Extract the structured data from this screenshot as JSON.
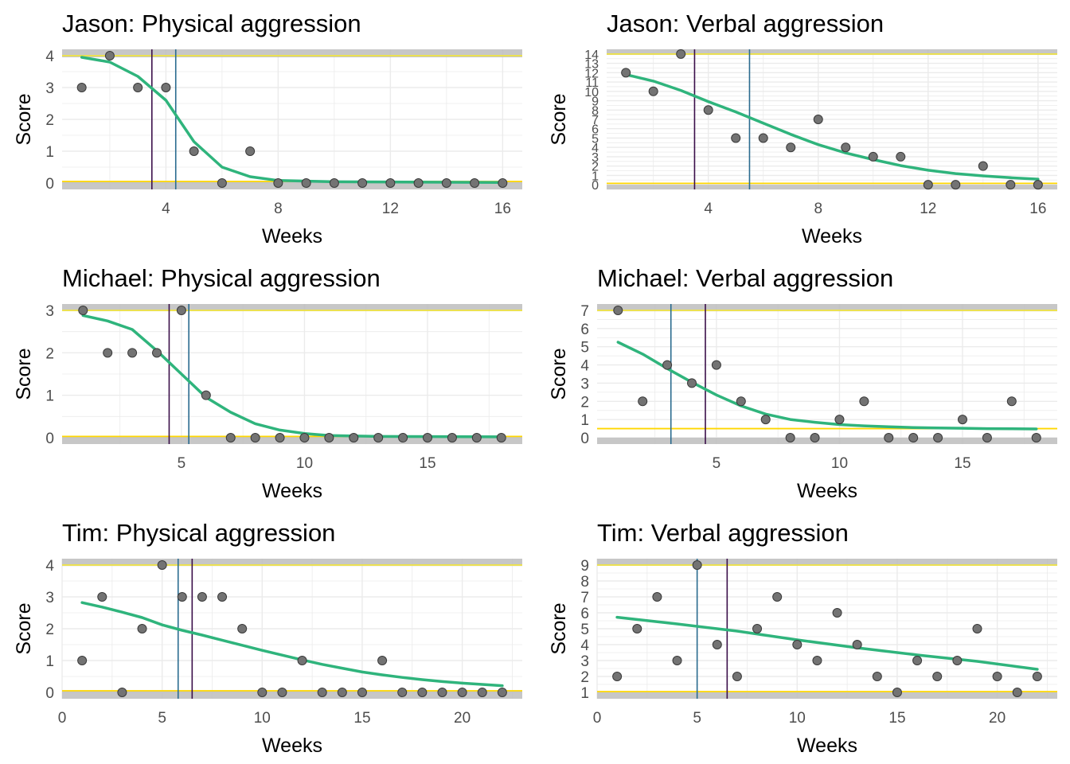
{
  "colors": {
    "curve": "#2fb47c",
    "point_fill": "#737373",
    "point_stroke": "#3a3a3a",
    "band": "#bdbdbd",
    "bound_line": "#f0e442",
    "zero_line": "#ffd700",
    "vline_dark": "#3b0f4a",
    "vline_blue": "#2a6b8f",
    "grid": "#ebebeb"
  },
  "chart_data": [
    {
      "type": "scatter",
      "title": "Jason: Physical aggression",
      "xlabel": "Weeks",
      "ylabel": "Score",
      "xlim": [
        0.3,
        16.7
      ],
      "ylim": [
        -0.2,
        4.2
      ],
      "xticks": [
        4,
        8,
        12,
        16
      ],
      "yticks": [
        0,
        1,
        2,
        3,
        4
      ],
      "points": [
        [
          1,
          3
        ],
        [
          2,
          4
        ],
        [
          3,
          3
        ],
        [
          4,
          3
        ],
        [
          5,
          1
        ],
        [
          6,
          0
        ],
        [
          7,
          1
        ],
        [
          8,
          0
        ],
        [
          9,
          0
        ],
        [
          10,
          0
        ],
        [
          11,
          0
        ],
        [
          12,
          0
        ],
        [
          13,
          0
        ],
        [
          14,
          0
        ],
        [
          15,
          0
        ],
        [
          16,
          0
        ]
      ],
      "fit": [
        [
          1,
          3.95
        ],
        [
          2,
          3.8
        ],
        [
          3,
          3.35
        ],
        [
          4,
          2.6
        ],
        [
          5,
          1.3
        ],
        [
          6,
          0.5
        ],
        [
          7,
          0.2
        ],
        [
          8,
          0.08
        ],
        [
          10,
          0.04
        ],
        [
          16,
          0.02
        ]
      ],
      "vlines": [
        {
          "x": 3.5,
          "color": "dark"
        },
        {
          "x": 4.35,
          "color": "blue"
        }
      ],
      "bands": [
        [
          3.95,
          4.2
        ],
        [
          -0.2,
          0.05
        ]
      ],
      "hlines": [
        {
          "y": 4.0,
          "color": "bound"
        },
        {
          "y": 0.05,
          "color": "zero"
        }
      ]
    },
    {
      "type": "scatter",
      "title": "Jason: Verbal aggression",
      "xlabel": "Weeks",
      "ylabel": "Score",
      "xlim": [
        0.3,
        16.7
      ],
      "ylim": [
        -0.5,
        14.5
      ],
      "xticks": [
        4,
        8,
        12,
        16
      ],
      "yticks": [
        0,
        1,
        2,
        3,
        4,
        5,
        6,
        7,
        8,
        9,
        10,
        11,
        12,
        13,
        14
      ],
      "points": [
        [
          1,
          12
        ],
        [
          2,
          10
        ],
        [
          3,
          14
        ],
        [
          4,
          8
        ],
        [
          5,
          5
        ],
        [
          6,
          5
        ],
        [
          7,
          4
        ],
        [
          8,
          7
        ],
        [
          9,
          4
        ],
        [
          10,
          3
        ],
        [
          11,
          3
        ],
        [
          12,
          0
        ],
        [
          13,
          0
        ],
        [
          14,
          2
        ],
        [
          15,
          0
        ],
        [
          16,
          0
        ]
      ],
      "fit": [
        [
          1,
          11.8
        ],
        [
          2,
          11.1
        ],
        [
          3,
          10.1
        ],
        [
          4,
          8.9
        ],
        [
          5,
          7.8
        ],
        [
          6,
          6.6
        ],
        [
          7,
          5.4
        ],
        [
          8,
          4.3
        ],
        [
          9,
          3.4
        ],
        [
          10,
          2.7
        ],
        [
          11,
          2.05
        ],
        [
          12,
          1.55
        ],
        [
          13,
          1.2
        ],
        [
          14,
          0.95
        ],
        [
          15,
          0.75
        ],
        [
          16,
          0.6
        ]
      ],
      "vlines": [
        {
          "x": 3.5,
          "color": "dark"
        },
        {
          "x": 5.5,
          "color": "blue"
        }
      ],
      "bands": [
        [
          13.9,
          14.5
        ],
        [
          -0.5,
          0.0
        ]
      ],
      "hlines": [
        {
          "y": 14.0,
          "color": "bound"
        },
        {
          "y": 0.15,
          "color": "zero"
        }
      ]
    },
    {
      "type": "scatter",
      "title": "Michael: Physical aggression",
      "xlabel": "Weeks",
      "ylabel": "Score",
      "xlim": [
        0.15,
        18.85
      ],
      "ylim": [
        -0.15,
        3.15
      ],
      "xticks": [
        5,
        10,
        15
      ],
      "yticks": [
        0,
        1,
        2,
        3
      ],
      "points": [
        [
          1,
          3
        ],
        [
          2,
          2
        ],
        [
          3,
          2
        ],
        [
          4,
          2
        ],
        [
          5,
          3
        ],
        [
          6,
          1
        ],
        [
          7,
          0
        ],
        [
          8,
          0
        ],
        [
          9,
          0
        ],
        [
          10,
          0
        ],
        [
          11,
          0
        ],
        [
          12,
          0
        ],
        [
          13,
          0
        ],
        [
          14,
          0
        ],
        [
          15,
          0
        ],
        [
          16,
          0
        ],
        [
          17,
          0
        ],
        [
          18,
          0
        ]
      ],
      "fit": [
        [
          1,
          2.88
        ],
        [
          2,
          2.75
        ],
        [
          3,
          2.55
        ],
        [
          4,
          2.05
        ],
        [
          5,
          1.5
        ],
        [
          6,
          0.95
        ],
        [
          7,
          0.6
        ],
        [
          8,
          0.33
        ],
        [
          9,
          0.18
        ],
        [
          10,
          0.1
        ],
        [
          11,
          0.05
        ],
        [
          13,
          0.03
        ],
        [
          18,
          0.02
        ]
      ],
      "vlines": [
        {
          "x": 4.5,
          "color": "dark"
        },
        {
          "x": 5.3,
          "color": "blue"
        }
      ],
      "bands": [
        [
          2.98,
          3.15
        ],
        [
          -0.15,
          0.03
        ]
      ],
      "hlines": [
        {
          "y": 3.0,
          "color": "bound"
        },
        {
          "y": 0.03,
          "color": "zero"
        }
      ]
    },
    {
      "type": "scatter",
      "title": "Michael: Verbal aggression",
      "xlabel": "Weeks",
      "ylabel": "Score",
      "xlim": [
        0.15,
        18.85
      ],
      "ylim": [
        -0.35,
        7.35
      ],
      "xticks": [
        5,
        10,
        15
      ],
      "yticks": [
        0,
        1,
        2,
        3,
        4,
        5,
        6,
        7
      ],
      "points": [
        [
          1,
          7
        ],
        [
          2,
          2
        ],
        [
          3,
          4
        ],
        [
          4,
          3
        ],
        [
          5,
          4
        ],
        [
          6,
          2
        ],
        [
          7,
          1
        ],
        [
          8,
          0
        ],
        [
          9,
          0
        ],
        [
          10,
          1
        ],
        [
          11,
          2
        ],
        [
          12,
          0
        ],
        [
          13,
          0
        ],
        [
          14,
          0
        ],
        [
          15,
          1
        ],
        [
          16,
          0
        ],
        [
          17,
          2
        ],
        [
          18,
          0
        ]
      ],
      "fit": [
        [
          1,
          5.25
        ],
        [
          2,
          4.6
        ],
        [
          3,
          3.8
        ],
        [
          4,
          3.05
        ],
        [
          5,
          2.35
        ],
        [
          6,
          1.75
        ],
        [
          7,
          1.3
        ],
        [
          8,
          1.0
        ],
        [
          9,
          0.85
        ],
        [
          10,
          0.72
        ],
        [
          11,
          0.65
        ],
        [
          12,
          0.6
        ],
        [
          13,
          0.56
        ],
        [
          14,
          0.54
        ],
        [
          15,
          0.52
        ],
        [
          16,
          0.5
        ],
        [
          17,
          0.49
        ],
        [
          18,
          0.48
        ]
      ],
      "vlines": [
        {
          "x": 3.15,
          "color": "blue"
        },
        {
          "x": 4.55,
          "color": "dark"
        }
      ],
      "bands": [
        [
          6.95,
          7.35
        ],
        [
          -0.35,
          0.0
        ]
      ],
      "hlines": [
        {
          "y": 7.0,
          "color": "bound"
        },
        {
          "y": 0.5,
          "color": "zero"
        }
      ]
    },
    {
      "type": "scatter",
      "title": "Tim: Physical aggression",
      "xlabel": "Weeks",
      "ylabel": "Score",
      "xlim": [
        0,
        23.0
      ],
      "ylim": [
        -0.2,
        4.2
      ],
      "xticks": [
        0,
        5,
        10,
        15,
        20
      ],
      "yticks": [
        0,
        1,
        2,
        3,
        4
      ],
      "points": [
        [
          1,
          1
        ],
        [
          2,
          3
        ],
        [
          3,
          0
        ],
        [
          4,
          2
        ],
        [
          5,
          4
        ],
        [
          6,
          3
        ],
        [
          7,
          3
        ],
        [
          8,
          3
        ],
        [
          9,
          2
        ],
        [
          10,
          0
        ],
        [
          11,
          0
        ],
        [
          12,
          1
        ],
        [
          13,
          0
        ],
        [
          14,
          0
        ],
        [
          15,
          0
        ],
        [
          16,
          1
        ],
        [
          17,
          0
        ],
        [
          18,
          0
        ],
        [
          19,
          0
        ],
        [
          20,
          0
        ],
        [
          21,
          0
        ],
        [
          22,
          0
        ]
      ],
      "fit": [
        [
          1,
          2.82
        ],
        [
          2,
          2.68
        ],
        [
          3,
          2.52
        ],
        [
          4,
          2.35
        ],
        [
          5,
          2.12
        ],
        [
          6,
          1.95
        ],
        [
          7,
          1.8
        ],
        [
          8,
          1.64
        ],
        [
          9,
          1.48
        ],
        [
          10,
          1.32
        ],
        [
          11,
          1.17
        ],
        [
          12,
          1.02
        ],
        [
          13,
          0.88
        ],
        [
          14,
          0.76
        ],
        [
          15,
          0.64
        ],
        [
          16,
          0.55
        ],
        [
          17,
          0.47
        ],
        [
          18,
          0.4
        ],
        [
          19,
          0.34
        ],
        [
          20,
          0.29
        ],
        [
          21,
          0.25
        ],
        [
          22,
          0.21
        ]
      ],
      "vlines": [
        {
          "x": 5.8,
          "color": "blue"
        },
        {
          "x": 6.5,
          "color": "dark"
        }
      ],
      "bands": [
        [
          3.97,
          4.2
        ],
        [
          -0.2,
          0.05
        ]
      ],
      "hlines": [
        {
          "y": 4.0,
          "color": "bound"
        },
        {
          "y": 0.05,
          "color": "zero"
        }
      ]
    },
    {
      "type": "scatter",
      "title": "Tim: Verbal aggression",
      "xlabel": "Weeks",
      "ylabel": "Score",
      "xlim": [
        0,
        23.0
      ],
      "ylim": [
        0.6,
        9.4
      ],
      "xticks": [
        0,
        5,
        10,
        15,
        20
      ],
      "yticks": [
        1,
        2,
        3,
        4,
        5,
        6,
        7,
        8,
        9
      ],
      "points": [
        [
          1,
          2
        ],
        [
          2,
          5
        ],
        [
          3,
          7
        ],
        [
          4,
          3
        ],
        [
          5,
          9
        ],
        [
          6,
          4
        ],
        [
          7,
          2
        ],
        [
          8,
          5
        ],
        [
          9,
          7
        ],
        [
          10,
          4
        ],
        [
          11,
          3
        ],
        [
          12,
          6
        ],
        [
          13,
          4
        ],
        [
          14,
          2
        ],
        [
          15,
          1
        ],
        [
          16,
          3
        ],
        [
          17,
          2
        ],
        [
          18,
          3
        ],
        [
          19,
          5
        ],
        [
          20,
          2
        ],
        [
          21,
          1
        ],
        [
          22,
          2
        ]
      ],
      "fit": [
        [
          1,
          5.72
        ],
        [
          4,
          5.3
        ],
        [
          7,
          4.85
        ],
        [
          10,
          4.3
        ],
        [
          13,
          3.8
        ],
        [
          16,
          3.35
        ],
        [
          19,
          2.95
        ],
        [
          22,
          2.45
        ]
      ],
      "vlines": [
        {
          "x": 5.0,
          "color": "blue"
        },
        {
          "x": 6.5,
          "color": "dark"
        }
      ],
      "bands": [
        [
          8.95,
          9.4
        ],
        [
          0.6,
          1.0
        ]
      ],
      "hlines": [
        {
          "y": 9.0,
          "color": "bound"
        },
        {
          "y": 1.05,
          "color": "zero"
        }
      ]
    }
  ]
}
